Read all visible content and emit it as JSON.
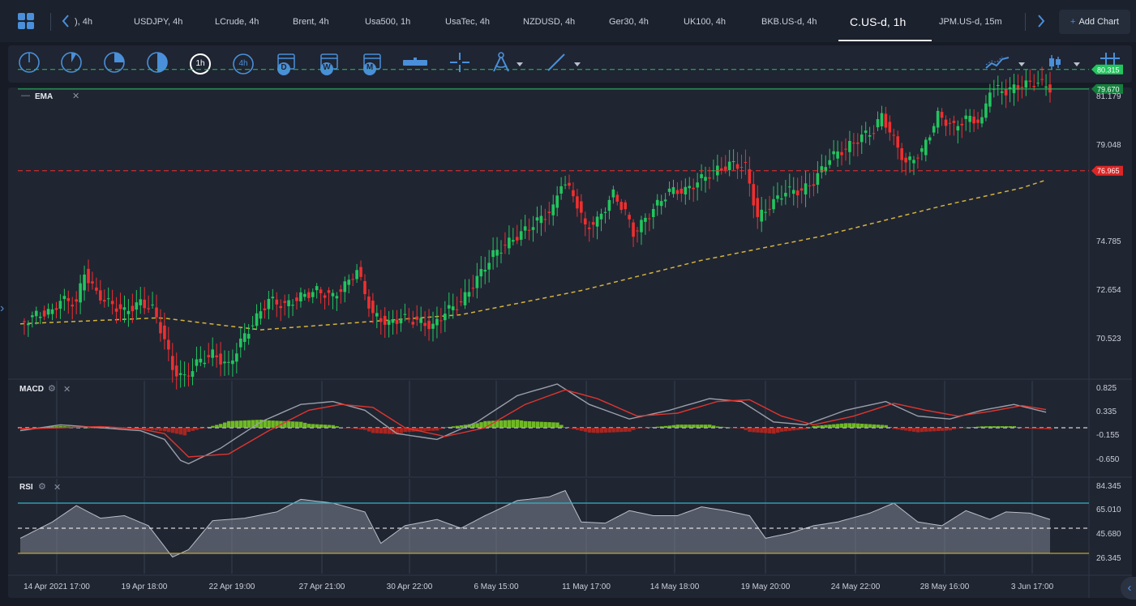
{
  "tabs": [
    {
      "label": "), 4h",
      "active": false
    },
    {
      "label": "USDJPY, 4h",
      "active": false
    },
    {
      "label": "LCrude, 4h",
      "active": false
    },
    {
      "label": "Brent, 4h",
      "active": false
    },
    {
      "label": "Usa500, 1h",
      "active": false
    },
    {
      "label": "UsaTec, 4h",
      "active": false
    },
    {
      "label": "NZDUSD, 4h",
      "active": false
    },
    {
      "label": "Ger30, 4h",
      "active": false
    },
    {
      "label": "UK100, 4h",
      "active": false
    },
    {
      "label": "BKB.US-d, 4h",
      "active": false
    },
    {
      "label": "C.US-d, 1h",
      "active": true
    },
    {
      "label": "JPM.US-d, 15m",
      "active": false
    }
  ],
  "add_chart_label": "Add Chart",
  "timeframe_badges": {
    "h1": "1h",
    "h4": "4h",
    "day": "D",
    "week": "W",
    "month": "M"
  },
  "panes": {
    "price": {
      "label": "EMA"
    },
    "macd": {
      "label": "MACD"
    },
    "rsi": {
      "label": "RSI"
    }
  },
  "price_axis": [
    "81.179",
    "79.048",
    "74.785",
    "72.654",
    "70.523"
  ],
  "price_tags": [
    {
      "value": "80.315",
      "color": "#22c55e"
    },
    {
      "value": "79.670",
      "color": "#15803d"
    },
    {
      "value": "76.965",
      "color": "#dc2626"
    }
  ],
  "macd_axis": [
    "0.825",
    "0.335",
    "-0.155",
    "-0.650"
  ],
  "rsi_axis": [
    "84.345",
    "65.010",
    "45.680",
    "26.345"
  ],
  "time_axis": [
    "14 Apr 2021 17:00",
    "19 Apr 18:00",
    "22 Apr 19:00",
    "27 Apr 21:00",
    "30 Apr 22:00",
    "6 May 15:00",
    "11 May 17:00",
    "14 May 18:00",
    "19 May 20:00",
    "24 May 22:00",
    "28 May 16:00",
    "3 Jun 17:00"
  ],
  "colors": {
    "up": "#22c55e",
    "down": "#ef2f2f",
    "ema": "#d4b43a",
    "accent": "#4a8fd9",
    "rsi_upper": "#2fb3c9",
    "rsi_lower": "#c9a227"
  },
  "chart_data": {
    "type": "candlestick",
    "instrument": "C.US-d",
    "timeframe": "1h",
    "ylim": [
      69.8,
      81.6
    ],
    "close_trace": [
      [
        0,
        71.9
      ],
      [
        4,
        72.2
      ],
      [
        8,
        72.3
      ],
      [
        10,
        72.7
      ],
      [
        14,
        72.6
      ],
      [
        16,
        73.6
      ],
      [
        19,
        72.9
      ],
      [
        22,
        72.6
      ],
      [
        26,
        72.3
      ],
      [
        30,
        72.6
      ],
      [
        33,
        72.4
      ],
      [
        36,
        71.4
      ],
      [
        38,
        70.4
      ],
      [
        41,
        70.1
      ],
      [
        44,
        70.6
      ],
      [
        48,
        70.9
      ],
      [
        52,
        70.5
      ],
      [
        55,
        71.3
      ],
      [
        58,
        71.9
      ],
      [
        62,
        72.7
      ],
      [
        66,
        72.5
      ],
      [
        70,
        72.8
      ],
      [
        74,
        73.0
      ],
      [
        78,
        72.8
      ],
      [
        82,
        73.3
      ],
      [
        84,
        73.7
      ],
      [
        86,
        72.9
      ],
      [
        88,
        72.2
      ],
      [
        92,
        71.9
      ],
      [
        95,
        72.1
      ],
      [
        99,
        72.0
      ],
      [
        103,
        71.8
      ],
      [
        106,
        72.3
      ],
      [
        110,
        72.6
      ],
      [
        114,
        73.4
      ],
      [
        118,
        74.2
      ],
      [
        122,
        74.6
      ],
      [
        126,
        75.0
      ],
      [
        130,
        75.4
      ],
      [
        133,
        75.7
      ],
      [
        135,
        76.6
      ],
      [
        138,
        76.2
      ],
      [
        141,
        75.1
      ],
      [
        144,
        75.3
      ],
      [
        148,
        76.2
      ],
      [
        151,
        75.6
      ],
      [
        153,
        74.9
      ],
      [
        155,
        75.2
      ],
      [
        158,
        75.7
      ],
      [
        162,
        76.3
      ],
      [
        166,
        76.3
      ],
      [
        170,
        76.7
      ],
      [
        174,
        77.0
      ],
      [
        178,
        77.2
      ],
      [
        181,
        77.1
      ],
      [
        184,
        75.4
      ],
      [
        187,
        75.8
      ],
      [
        191,
        76.3
      ],
      [
        195,
        76.3
      ],
      [
        198,
        76.6
      ],
      [
        202,
        77.4
      ],
      [
        206,
        77.7
      ],
      [
        210,
        78.1
      ],
      [
        213,
        78.3
      ],
      [
        215,
        78.8
      ],
      [
        218,
        78.0
      ],
      [
        221,
        77.2
      ],
      [
        225,
        77.6
      ],
      [
        229,
        78.8
      ],
      [
        233,
        78.4
      ],
      [
        236,
        78.7
      ],
      [
        240,
        78.6
      ],
      [
        242,
        79.7
      ],
      [
        246,
        79.6
      ],
      [
        250,
        79.8
      ],
      [
        254,
        79.9
      ],
      [
        257,
        79.7
      ]
    ],
    "ema_trace": [
      [
        0,
        71.9
      ],
      [
        35,
        72.1
      ],
      [
        60,
        71.7
      ],
      [
        90,
        72.0
      ],
      [
        110,
        72.2
      ],
      [
        140,
        73.0
      ],
      [
        170,
        74.0
      ],
      [
        200,
        74.8
      ],
      [
        230,
        75.8
      ],
      [
        250,
        76.4
      ],
      [
        257,
        76.7
      ]
    ],
    "levels": [
      80.315,
      79.67,
      76.965
    ],
    "macd": {
      "ylim": [
        -0.8,
        0.9
      ],
      "macd_line": [
        [
          0,
          -0.05
        ],
        [
          10,
          0.05
        ],
        [
          20,
          0.0
        ],
        [
          30,
          -0.05
        ],
        [
          36,
          -0.2
        ],
        [
          41,
          -0.65
        ],
        [
          50,
          -0.35
        ],
        [
          60,
          0.1
        ],
        [
          70,
          0.4
        ],
        [
          78,
          0.45
        ],
        [
          86,
          0.3
        ],
        [
          94,
          -0.1
        ],
        [
          104,
          -0.2
        ],
        [
          114,
          0.1
        ],
        [
          124,
          0.55
        ],
        [
          134,
          0.75
        ],
        [
          142,
          0.4
        ],
        [
          152,
          0.15
        ],
        [
          162,
          0.3
        ],
        [
          172,
          0.5
        ],
        [
          180,
          0.45
        ],
        [
          188,
          0.1
        ],
        [
          196,
          0.05
        ],
        [
          206,
          0.3
        ],
        [
          216,
          0.45
        ],
        [
          224,
          0.2
        ],
        [
          232,
          0.15
        ],
        [
          240,
          0.3
        ],
        [
          248,
          0.4
        ],
        [
          257,
          0.25
        ]
      ],
      "signal_line": [
        [
          0,
          -0.02
        ],
        [
          10,
          0.0
        ],
        [
          20,
          0.02
        ],
        [
          30,
          -0.02
        ],
        [
          36,
          -0.1
        ],
        [
          42,
          -0.5
        ],
        [
          52,
          -0.45
        ],
        [
          62,
          -0.05
        ],
        [
          72,
          0.3
        ],
        [
          80,
          0.4
        ],
        [
          88,
          0.35
        ],
        [
          96,
          0.0
        ],
        [
          106,
          -0.15
        ],
        [
          116,
          0.0
        ],
        [
          126,
          0.4
        ],
        [
          136,
          0.65
        ],
        [
          144,
          0.5
        ],
        [
          154,
          0.2
        ],
        [
          164,
          0.25
        ],
        [
          174,
          0.45
        ],
        [
          182,
          0.48
        ],
        [
          190,
          0.2
        ],
        [
          198,
          0.05
        ],
        [
          208,
          0.2
        ],
        [
          218,
          0.42
        ],
        [
          226,
          0.3
        ],
        [
          234,
          0.2
        ],
        [
          242,
          0.28
        ],
        [
          250,
          0.38
        ],
        [
          257,
          0.3
        ]
      ]
    },
    "rsi": {
      "ylim": [
        20,
        90
      ],
      "levels": [
        70,
        50,
        30
      ],
      "trace": [
        [
          0,
          42
        ],
        [
          8,
          55
        ],
        [
          14,
          68
        ],
        [
          20,
          58
        ],
        [
          26,
          60
        ],
        [
          32,
          52
        ],
        [
          38,
          27
        ],
        [
          42,
          33
        ],
        [
          48,
          56
        ],
        [
          56,
          58
        ],
        [
          64,
          63
        ],
        [
          70,
          73
        ],
        [
          78,
          70
        ],
        [
          86,
          63
        ],
        [
          90,
          38
        ],
        [
          96,
          52
        ],
        [
          104,
          57
        ],
        [
          110,
          50
        ],
        [
          116,
          60
        ],
        [
          124,
          72
        ],
        [
          132,
          75
        ],
        [
          136,
          80
        ],
        [
          140,
          55
        ],
        [
          146,
          54
        ],
        [
          152,
          64
        ],
        [
          158,
          60
        ],
        [
          164,
          60
        ],
        [
          170,
          67
        ],
        [
          176,
          64
        ],
        [
          182,
          60
        ],
        [
          186,
          42
        ],
        [
          192,
          46
        ],
        [
          198,
          52
        ],
        [
          204,
          55
        ],
        [
          212,
          62
        ],
        [
          218,
          70
        ],
        [
          224,
          55
        ],
        [
          230,
          52
        ],
        [
          236,
          64
        ],
        [
          242,
          57
        ],
        [
          246,
          63
        ],
        [
          252,
          62
        ],
        [
          257,
          57
        ]
      ]
    }
  }
}
